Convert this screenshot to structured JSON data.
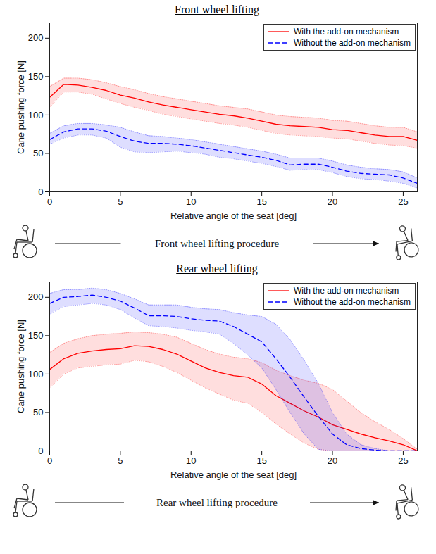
{
  "chart_data": [
    {
      "type": "line",
      "title": "Front wheel lifting",
      "x_label": "Relative angle of the seat [deg]",
      "y_label": "Cane pushing force [N]",
      "annotations": [
        "Front wheel lifting procedure"
      ],
      "x": [
        0,
        1,
        2,
        3,
        4,
        5,
        6,
        7,
        8,
        9,
        10,
        11,
        12,
        13,
        14,
        15,
        16,
        17,
        18,
        19,
        20,
        21,
        22,
        23,
        24,
        25,
        26
      ],
      "series": [
        {
          "name": "With the add-on mechanism",
          "color": "#ff0000",
          "line_style": "solid",
          "values": [
            123,
            140,
            139,
            136,
            132,
            126,
            122,
            117,
            113,
            110,
            107,
            104,
            101,
            99,
            96,
            92,
            88,
            86,
            85,
            84,
            81,
            80,
            77,
            74,
            72,
            72,
            67
          ],
          "lower": [
            110,
            130,
            130,
            127,
            121,
            115,
            110,
            106,
            101,
            98,
            95,
            92,
            89,
            87,
            84,
            80,
            76,
            74,
            73,
            72,
            70,
            69,
            66,
            63,
            61,
            60,
            57
          ],
          "upper": [
            137,
            148,
            148,
            146,
            142,
            137,
            133,
            128,
            124,
            121,
            118,
            115,
            112,
            110,
            108,
            104,
            100,
            98,
            97,
            96,
            93,
            92,
            89,
            86,
            84,
            84,
            78
          ]
        },
        {
          "name": "Without the add-on mechanism",
          "color": "#0000ff",
          "line_style": "dashed",
          "values": [
            68,
            78,
            82,
            82,
            79,
            72,
            66,
            63,
            63,
            62,
            60,
            57,
            54,
            51,
            48,
            45,
            41,
            35,
            36,
            36,
            32,
            27,
            24,
            23,
            22,
            18,
            11
          ],
          "lower": [
            62,
            70,
            74,
            74,
            70,
            58,
            52,
            51,
            52,
            53,
            51,
            49,
            45,
            43,
            40,
            37,
            33,
            28,
            29,
            29,
            25,
            20,
            17,
            16,
            14,
            11,
            5
          ],
          "upper": [
            76,
            86,
            89,
            89,
            87,
            84,
            78,
            73,
            72,
            70,
            68,
            65,
            62,
            59,
            56,
            53,
            49,
            44,
            44,
            44,
            40,
            35,
            32,
            30,
            29,
            26,
            18
          ]
        }
      ],
      "xlim": [
        0,
        26
      ],
      "ylim": [
        0,
        220
      ],
      "xticks": [
        0,
        5,
        10,
        15,
        20,
        25
      ],
      "yticks": [
        0,
        50,
        100,
        150,
        200
      ],
      "legend": "upper right"
    },
    {
      "type": "line",
      "title": "Rear wheel lifting",
      "x_label": "Relative angle of the seat [deg]",
      "y_label": "Cane pushing force [N]",
      "annotations": [
        "Rear wheel lifting procedure"
      ],
      "x": [
        0,
        1,
        2,
        3,
        4,
        5,
        6,
        7,
        8,
        9,
        10,
        11,
        12,
        13,
        14,
        15,
        16,
        17,
        18,
        19,
        20,
        21,
        22,
        23,
        24,
        25,
        26
      ],
      "series": [
        {
          "name": "With the add-on mechanism",
          "color": "#ff0000",
          "line_style": "solid",
          "values": [
            106,
            120,
            127,
            130,
            132,
            133,
            137,
            136,
            132,
            126,
            117,
            108,
            102,
            98,
            96,
            87,
            72,
            62,
            52,
            44,
            34,
            28,
            22,
            17,
            13,
            8,
            0
          ],
          "lower": [
            82,
            100,
            108,
            110,
            112,
            113,
            118,
            116,
            110,
            102,
            92,
            82,
            74,
            66,
            62,
            50,
            35,
            22,
            10,
            2,
            0,
            0,
            0,
            0,
            0,
            0,
            0
          ],
          "upper": [
            128,
            140,
            146,
            150,
            152,
            153,
            155,
            154,
            152,
            148,
            140,
            132,
            126,
            122,
            120,
            115,
            105,
            98,
            92,
            88,
            80,
            65,
            50,
            38,
            28,
            16,
            2
          ]
        },
        {
          "name": "Without the add-on mechanism",
          "color": "#0000ff",
          "line_style": "dashed",
          "values": [
            192,
            200,
            201,
            203,
            200,
            195,
            186,
            176,
            176,
            175,
            172,
            170,
            169,
            162,
            152,
            142,
            120,
            96,
            70,
            45,
            22,
            8,
            3,
            1,
            0,
            0,
            0
          ],
          "lower": [
            178,
            188,
            190,
            192,
            190,
            184,
            173,
            163,
            162,
            160,
            157,
            155,
            152,
            140,
            125,
            108,
            80,
            50,
            22,
            2,
            0,
            0,
            0,
            0,
            0,
            0,
            0
          ],
          "upper": [
            205,
            210,
            210,
            212,
            210,
            205,
            198,
            190,
            190,
            190,
            187,
            185,
            184,
            180,
            177,
            175,
            165,
            145,
            118,
            88,
            50,
            22,
            8,
            3,
            0,
            0,
            0
          ]
        }
      ],
      "xlim": [
        0,
        26
      ],
      "ylim": [
        0,
        220
      ],
      "xticks": [
        0,
        5,
        10,
        15,
        20,
        25
      ],
      "yticks": [
        0,
        50,
        100,
        150,
        200
      ],
      "legend": "upper right"
    }
  ]
}
